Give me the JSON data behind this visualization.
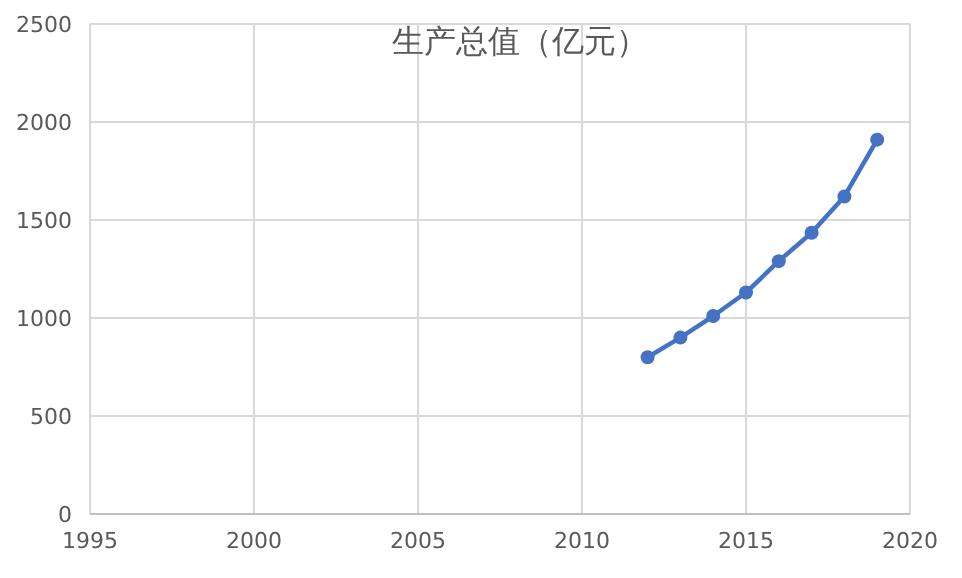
{
  "chart_data": {
    "type": "line",
    "title": "生产总值（亿元）",
    "x": [
      2012,
      2013,
      2014,
      2015,
      2016,
      2017,
      2018,
      2019
    ],
    "series": [
      {
        "color": "#4472c4",
        "values": [
          800,
          900,
          1010,
          1130,
          1290,
          1435,
          1620,
          1910
        ]
      }
    ],
    "xlim": [
      1995,
      2020
    ],
    "xticks": [
      1995,
      2000,
      2005,
      2010,
      2015,
      2020
    ],
    "ylim": [
      0,
      2500
    ],
    "yticks": [
      0,
      500,
      1000,
      1500,
      2000,
      2500
    ],
    "grid": true,
    "marker": "circle",
    "line_style": "solid"
  }
}
